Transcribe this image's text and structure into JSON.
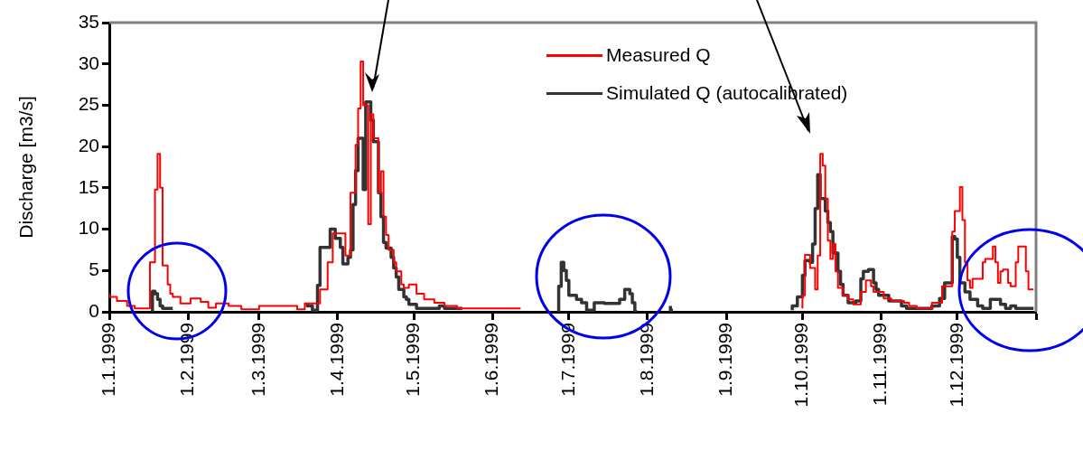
{
  "chart_data": {
    "type": "step",
    "ylabel": "Discharge [m3/s]",
    "xlim": [
      "1999-01-01",
      "2000-01-01"
    ],
    "xticks": [
      {
        "value": "1999-01-01",
        "label": "1.1.1999"
      },
      {
        "value": "1999-02-01",
        "label": "1.2.1999"
      },
      {
        "value": "1999-03-01",
        "label": "1.3.1999"
      },
      {
        "value": "1999-04-01",
        "label": "1.4.1999"
      },
      {
        "value": "1999-05-01",
        "label": "1.5.1999"
      },
      {
        "value": "1999-06-01",
        "label": "1.6.1999"
      },
      {
        "value": "1999-07-01",
        "label": "1.7.1999"
      },
      {
        "value": "1999-08-01",
        "label": "1.8.1999"
      },
      {
        "value": "1999-09-01",
        "label": "1.9.1999"
      },
      {
        "value": "1999-10-01",
        "label": "1.10.1999"
      },
      {
        "value": "1999-11-01",
        "label": "1.11.1999"
      },
      {
        "value": "1999-12-01",
        "label": "1.12.1999"
      },
      {
        "value": "2000-01-01",
        "label": null
      }
    ],
    "ylim": [
      0,
      35
    ],
    "yticks": [
      0,
      5,
      10,
      15,
      20,
      25,
      30,
      35
    ],
    "grid": false,
    "legend": "top right",
    "marker": "none",
    "line_style": "solid",
    "series": [
      {
        "name": "Measured Q",
        "color": "#ff0000",
        "x": [
          "1999-01-01",
          "1999-01-04",
          "1999-01-08",
          "1999-01-11",
          "1999-01-17",
          "1999-01-19",
          "1999-01-20",
          "1999-01-21",
          "1999-01-22",
          "1999-01-24",
          "1999-01-25",
          "1999-01-26",
          "1999-01-29",
          "1999-02-02",
          "1999-02-06",
          "1999-02-09",
          "1999-02-12",
          "1999-02-17",
          "1999-02-22",
          "1999-03-01",
          "1999-03-03",
          "1999-03-16",
          "1999-03-19",
          "1999-03-25",
          "1999-03-28",
          "1999-03-30",
          "1999-04-01",
          "1999-04-04",
          "1999-04-06",
          "1999-04-08",
          "1999-04-09",
          "1999-04-10",
          "1999-04-11",
          "1999-04-13",
          "1999-04-14",
          "1999-04-15",
          "1999-04-17",
          "1999-04-18",
          "1999-04-19",
          "1999-04-20",
          "1999-04-21",
          "1999-04-23",
          "1999-04-24",
          "1999-04-26",
          "1999-04-27",
          "1999-04-29",
          "1999-05-02",
          "1999-05-05",
          "1999-05-09",
          "1999-05-13",
          "1999-05-18",
          "1999-05-23",
          "1999-06-12",
          "1999-06-20",
          "1999-10-01",
          "1999-10-02",
          "1999-10-04",
          "1999-10-06",
          "1999-10-07",
          "1999-10-08",
          "1999-10-09",
          "1999-10-10",
          "1999-10-11",
          "1999-10-12",
          "1999-10-13",
          "1999-10-14",
          "1999-10-15",
          "1999-10-17",
          "1999-10-19",
          "1999-10-21",
          "1999-10-24",
          "1999-10-26",
          "1999-10-28",
          "1999-10-29",
          "1999-11-02",
          "1999-11-05",
          "1999-11-10",
          "1999-11-12",
          "1999-11-15",
          "1999-11-21",
          "1999-11-25",
          "1999-11-29",
          "1999-11-30",
          "1999-12-02",
          "1999-12-03",
          "1999-12-04",
          "1999-12-05",
          "1999-12-06",
          "1999-12-07",
          "1999-12-11",
          "1999-12-12",
          "1999-12-15",
          "1999-12-16",
          "1999-12-17",
          "1999-12-18",
          "1999-12-19",
          "1999-12-21",
          "1999-12-22",
          "1999-12-24",
          "1999-12-25",
          "1999-12-26",
          "1999-12-28",
          "1999-12-29",
          "1999-12-31"
        ],
        "values": [
          2.3,
          1.8,
          1.3,
          0.7,
          0.4,
          6,
          14.8,
          19.1,
          15,
          5.6,
          3.3,
          2.2,
          1.8,
          1.0,
          1.6,
          1.2,
          0.5,
          1.0,
          0.7,
          0.3,
          0.7,
          0.7,
          0.3,
          1.0,
          2.7,
          6,
          9.5,
          9.5,
          6.8,
          14.4,
          20.2,
          24.6,
          30.3,
          25.0,
          10.6,
          23.9,
          21,
          14.4,
          17,
          11.5,
          9.3,
          7.5,
          6,
          4.9,
          3.3,
          2.9,
          3.3,
          2.2,
          1.5,
          1.1,
          0.7,
          0.4,
          0.4,
          null,
          0.4,
          2.0,
          6.9,
          5.3,
          2.7,
          6.8,
          19.1,
          17.7,
          13.7,
          8.6,
          6.4,
          8.2,
          4.9,
          2.9,
          2.0,
          1.5,
          0.9,
          2.4,
          3.8,
          3.1,
          2.4,
          1.6,
          1.3,
          1.1,
          0.7,
          0.4,
          1.1,
          3.1,
          9.7,
          12.2,
          15.1,
          11.1,
          6.0,
          3.8,
          2.9,
          4.0,
          6.0,
          6.4,
          7.9,
          6.0,
          3.5,
          4.9,
          5.1,
          3.5,
          3.1,
          6.0,
          7.9,
          7.9,
          4.9,
          2.7
        ]
      },
      {
        "name": "Simulated Q (autocalibrated)",
        "color": "#333333",
        "x": [
          "1999-01-18",
          "1999-01-19",
          "1999-01-20",
          "1999-01-21",
          "1999-01-22",
          "1999-01-23",
          "1999-01-26",
          "1999-02-15",
          "1999-03-20",
          "1999-03-22",
          "1999-03-24",
          "1999-03-25",
          "1999-03-29",
          "1999-03-31",
          "1999-04-02",
          "1999-04-03",
          "1999-04-05",
          "1999-04-06",
          "1999-04-07",
          "1999-04-08",
          "1999-04-09",
          "1999-04-11",
          "1999-04-12",
          "1999-04-14",
          "1999-04-15",
          "1999-04-17",
          "1999-04-18",
          "1999-04-19",
          "1999-04-20",
          "1999-04-22",
          "1999-04-23",
          "1999-04-24",
          "1999-04-25",
          "1999-04-27",
          "1999-04-28",
          "1999-04-29",
          "1999-05-02",
          "1999-05-05",
          "1999-05-11",
          "1999-05-13",
          "1999-05-16",
          "1999-05-20",
          "1999-06-10",
          "1999-06-27",
          "1999-06-28",
          "1999-06-29",
          "1999-06-30",
          "1999-07-01",
          "1999-07-04",
          "1999-07-06",
          "1999-07-08",
          "1999-07-11",
          "1999-07-15",
          "1999-07-21",
          "1999-07-23",
          "1999-07-25",
          "1999-07-26",
          "1999-07-27",
          "1999-07-28",
          "1999-08-03",
          "1999-08-10",
          "1999-08-11",
          "1999-09-01",
          "1999-09-27",
          "1999-09-29",
          "1999-10-01",
          "1999-10-02",
          "1999-10-04",
          "1999-10-05",
          "1999-10-06",
          "1999-10-07",
          "1999-10-08",
          "1999-10-10",
          "1999-10-11",
          "1999-10-12",
          "1999-10-13",
          "1999-10-15",
          "1999-10-16",
          "1999-10-17",
          "1999-10-19",
          "1999-10-22",
          "1999-10-24",
          "1999-10-25",
          "1999-10-27",
          "1999-10-29",
          "1999-10-30",
          "1999-10-31",
          "1999-11-04",
          "1999-11-09",
          "1999-11-11",
          "1999-11-15",
          "1999-11-21",
          "1999-11-24",
          "1999-11-26",
          "1999-11-29",
          "1999-11-30",
          "1999-12-01",
          "1999-12-02",
          "1999-12-04",
          "1999-12-06",
          "1999-12-09",
          "1999-12-11",
          "1999-12-14",
          "1999-12-18",
          "1999-12-20",
          "1999-12-22",
          "1999-12-24",
          "1999-12-25",
          "1999-12-31"
        ],
        "values": [
          0,
          2.5,
          2.2,
          1.5,
          0.7,
          0.4,
          0.4,
          null,
          1.0,
          0.7,
          0.2,
          3.2,
          7.8,
          10,
          8.9,
          7.8,
          5.8,
          6.6,
          7.5,
          13,
          17.1,
          21,
          14.8,
          25.4,
          23.2,
          20.6,
          14.4,
          11.5,
          8.4,
          7.7,
          6.6,
          5.3,
          4.2,
          2.7,
          1.8,
          1.5,
          0.9,
          0.4,
          0.4,
          0.7,
          0.4,
          0.4,
          null,
          0,
          3.1,
          6.0,
          5.0,
          3.8,
          2.0,
          1.5,
          1.1,
          0.2,
          1.1,
          1.0,
          1.5,
          2.7,
          2.2,
          1.1,
          0,
          null,
          0.7,
          0.2,
          null,
          0.2,
          0.7,
          1.8,
          4.4,
          6.2,
          6.0,
          8.2,
          12.5,
          16.6,
          13.7,
          12.2,
          10.8,
          9.7,
          7.1,
          4.9,
          3.3,
          2.0,
          1.1,
          1.3,
          4.0,
          4.9,
          5.1,
          3.5,
          2.7,
          2.0,
          1.3,
          0.7,
          0.4,
          0.4,
          0.7,
          1.6,
          3.5,
          9.1,
          8.8,
          6.6,
          3.5,
          2.4,
          1.5,
          0.7,
          0.4,
          1.5,
          0.9,
          0.4,
          0.7,
          0.4,
          0.4
        ]
      }
    ]
  }
}
